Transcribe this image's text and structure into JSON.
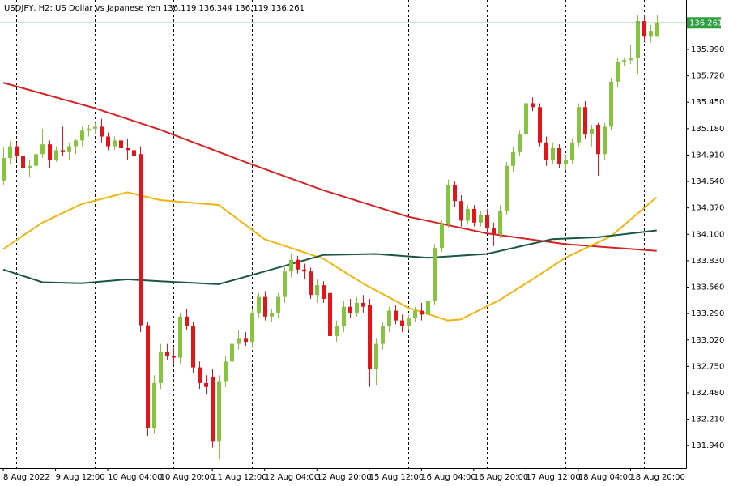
{
  "chart_data": {
    "type": "candlestick",
    "title": "USDJPY, H2:  US Dollar vs Japanese Yen  136.119 136.344 136.119 136.261",
    "x": [
      0,
      1,
      2,
      3,
      4,
      5,
      6,
      7,
      8,
      9,
      10,
      11,
      12,
      13,
      14,
      15,
      16,
      17,
      18,
      19,
      20,
      21,
      22,
      23,
      24,
      25,
      26,
      27,
      28,
      29,
      30,
      31,
      32,
      33,
      34,
      35,
      36,
      37,
      38,
      39,
      40,
      41,
      42,
      43,
      44,
      45,
      46,
      47,
      48,
      49,
      50,
      51,
      52,
      53,
      54,
      55,
      56,
      57,
      58,
      59,
      60,
      61,
      62,
      63,
      64,
      65,
      66,
      67,
      68,
      69,
      70,
      71,
      72,
      73,
      74,
      75,
      76,
      77,
      78,
      79,
      80,
      81,
      82,
      83,
      84,
      85,
      86,
      87,
      88,
      89,
      90,
      91,
      92,
      93,
      94,
      95,
      96,
      97,
      98,
      99,
      100
    ],
    "open": [
      134.65,
      134.88,
      135.0,
      134.9,
      134.78,
      134.8,
      134.92,
      135.02,
      134.86,
      134.96,
      134.94,
      135.0,
      135.06,
      135.16,
      135.18,
      135.2,
      135.1,
      135.0,
      135.06,
      134.98,
      134.96,
      134.92,
      133.17,
      132.12,
      132.58,
      132.9,
      132.86,
      132.84,
      133.26,
      133.16,
      132.74,
      132.58,
      132.64,
      131.98,
      132.6,
      132.8,
      132.98,
      133.04,
      133.0,
      133.3,
      133.46,
      133.26,
      133.3,
      133.46,
      133.72,
      133.84,
      133.74,
      133.72,
      133.48,
      133.58,
      133.5,
      133.06,
      133.16,
      133.36,
      133.3,
      133.4,
      133.38,
      132.72,
      132.98,
      133.16,
      133.32,
      133.22,
      133.16,
      133.24,
      133.32,
      133.28,
      133.42,
      133.96,
      134.2,
      134.6,
      134.44,
      134.24,
      134.36,
      134.22,
      134.3,
      134.16,
      134.1,
      134.34,
      134.8,
      134.94,
      135.12,
      135.44,
      135.4,
      135.04,
      134.86,
      134.98,
      134.82,
      134.86,
      135.04,
      135.4,
      135.12,
      135.22,
      134.92,
      135.2,
      135.66,
      135.86,
      135.88,
      135.9,
      136.28,
      136.12,
      136.119
    ],
    "high": [
      134.99,
      135.05,
      135.04,
      134.96,
      134.86,
      134.95,
      135.18,
      135.06,
      135.0,
      135.2,
      135.04,
      135.08,
      135.2,
      135.22,
      135.24,
      135.28,
      135.14,
      135.1,
      135.1,
      135.08,
      135.02,
      135.0,
      133.2,
      132.66,
      132.98,
      132.98,
      132.94,
      133.3,
      133.34,
      133.2,
      132.8,
      132.66,
      132.72,
      132.66,
      132.86,
      133.04,
      133.12,
      133.1,
      133.34,
      133.5,
      133.52,
      133.34,
      133.5,
      133.76,
      133.9,
      133.88,
      133.8,
      133.76,
      133.64,
      133.62,
      133.62,
      133.22,
      133.42,
      133.44,
      133.46,
      133.48,
      133.44,
      133.04,
      133.2,
      133.36,
      133.38,
      133.28,
      133.28,
      133.36,
      133.4,
      133.46,
      134.0,
      134.24,
      134.66,
      134.64,
      134.5,
      134.4,
      134.4,
      134.34,
      134.36,
      134.22,
      134.4,
      134.84,
      135.0,
      135.16,
      135.48,
      135.5,
      135.44,
      135.1,
      135.04,
      135.02,
      134.92,
      135.08,
      135.44,
      135.46,
      135.22,
      135.24,
      135.24,
      135.7,
      135.9,
      135.9,
      136.04,
      136.34,
      136.34,
      136.24,
      136.344
    ],
    "low": [
      134.6,
      134.82,
      134.86,
      134.7,
      134.68,
      134.76,
      134.88,
      134.78,
      134.84,
      134.9,
      134.86,
      134.92,
      135.0,
      135.1,
      135.12,
      135.04,
      134.96,
      134.96,
      134.94,
      134.86,
      134.82,
      133.1,
      132.04,
      132.06,
      132.52,
      132.82,
      132.78,
      132.78,
      133.12,
      132.68,
      132.52,
      132.46,
      131.92,
      131.8,
      132.54,
      132.76,
      132.92,
      132.96,
      132.94,
      133.24,
      133.22,
      133.2,
      133.24,
      133.4,
      133.66,
      133.7,
      133.64,
      133.44,
      133.4,
      133.4,
      132.98,
      133.0,
      133.1,
      133.24,
      133.26,
      133.3,
      132.54,
      132.56,
      132.92,
      133.1,
      133.18,
      133.1,
      133.12,
      133.2,
      133.22,
      133.24,
      133.38,
      133.92,
      134.16,
      134.38,
      134.18,
      134.2,
      134.18,
      134.18,
      134.12,
      133.98,
      134.06,
      134.3,
      134.74,
      134.9,
      135.08,
      135.36,
      135.0,
      134.8,
      134.82,
      134.78,
      134.76,
      134.82,
      135.0,
      135.08,
      135.0,
      134.7,
      134.86,
      135.16,
      135.6,
      135.82,
      135.84,
      135.74,
      136.06,
      136.06,
      136.119
    ],
    "close": [
      134.88,
      135.0,
      134.9,
      134.78,
      134.8,
      134.92,
      135.02,
      134.86,
      134.96,
      134.94,
      135.0,
      135.06,
      135.16,
      135.18,
      135.2,
      135.1,
      135.0,
      135.06,
      134.98,
      134.96,
      134.9,
      133.17,
      132.12,
      132.58,
      132.9,
      132.86,
      132.84,
      133.26,
      133.16,
      132.74,
      132.58,
      132.54,
      131.98,
      132.6,
      132.8,
      132.98,
      133.04,
      133.0,
      133.3,
      133.46,
      133.26,
      133.3,
      133.46,
      133.72,
      133.84,
      133.74,
      133.72,
      133.48,
      133.58,
      133.44,
      133.06,
      133.16,
      133.36,
      133.3,
      133.4,
      133.36,
      132.72,
      132.98,
      133.16,
      133.32,
      133.22,
      133.16,
      133.24,
      133.32,
      133.28,
      133.42,
      133.96,
      134.2,
      134.6,
      134.44,
      134.24,
      134.36,
      134.22,
      134.3,
      134.16,
      134.1,
      134.34,
      134.8,
      134.94,
      135.12,
      135.44,
      135.4,
      135.04,
      134.86,
      134.98,
      134.82,
      134.86,
      135.04,
      135.4,
      135.12,
      135.18,
      134.92,
      135.2,
      135.66,
      135.86,
      135.88,
      135.9,
      136.28,
      136.12,
      136.18,
      136.261
    ],
    "up_color": "#86c440",
    "down_color": "#e3141a",
    "moving_averages": [
      {
        "color": "#d42424",
        "x": [
          0,
          14,
          24,
          37,
          49,
          62,
          74,
          86,
          100
        ],
        "values": [
          135.65,
          135.39,
          135.17,
          134.84,
          134.55,
          134.28,
          134.11,
          134.0,
          133.93
        ]
      },
      {
        "color": "#f2b50f",
        "x": [
          0,
          6,
          12,
          19,
          24,
          33,
          40,
          49,
          55,
          62,
          68,
          70,
          76,
          81,
          86,
          93,
          100
        ],
        "values": [
          133.95,
          134.22,
          134.41,
          134.53,
          134.45,
          134.4,
          134.05,
          133.85,
          133.6,
          133.35,
          133.22,
          133.23,
          133.43,
          133.64,
          133.86,
          134.08,
          134.48
        ]
      },
      {
        "color": "#1b5640",
        "x": [
          0,
          6,
          12,
          19,
          24,
          33,
          40,
          49,
          57,
          65,
          74,
          84,
          91,
          100
        ],
        "values": [
          133.74,
          133.61,
          133.6,
          133.64,
          133.62,
          133.59,
          133.72,
          133.89,
          133.9,
          133.86,
          133.9,
          134.05,
          134.07,
          134.14
        ]
      }
    ],
    "price_line": 136.261,
    "price_line_color": "#2e9e3e",
    "xlim": [
      -0.5,
      104.5
    ],
    "ylim": [
      131.71,
      136.495
    ],
    "yticks": [
      {
        "value": 131.94,
        "label": "131.940"
      },
      {
        "value": 132.21,
        "label": "132.210"
      },
      {
        "value": 132.48,
        "label": "132.480"
      },
      {
        "value": 132.75,
        "label": "132.750"
      },
      {
        "value": 133.02,
        "label": "133.020"
      },
      {
        "value": 133.29,
        "label": "133.290"
      },
      {
        "value": 133.56,
        "label": "133.560"
      },
      {
        "value": 133.83,
        "label": "133.830"
      },
      {
        "value": 134.1,
        "label": "134.100"
      },
      {
        "value": 134.37,
        "label": "134.370"
      },
      {
        "value": 134.64,
        "label": "134.640"
      },
      {
        "value": 134.91,
        "label": "134.910"
      },
      {
        "value": 135.18,
        "label": "135.180"
      },
      {
        "value": 135.45,
        "label": "135.450"
      },
      {
        "value": 135.72,
        "label": "135.720"
      },
      {
        "value": 135.99,
        "label": "135.990"
      }
    ],
    "xticks": [
      {
        "value": 0,
        "label": "8 Aug 2022"
      },
      {
        "value": 8,
        "label": "9 Aug 12:00"
      },
      {
        "value": 16,
        "label": "10 Aug 04:00"
      },
      {
        "value": 24,
        "label": "10 Aug 20:00"
      },
      {
        "value": 32,
        "label": "11 Aug 12:00"
      },
      {
        "value": 40,
        "label": "12 Aug 04:00"
      },
      {
        "value": 48,
        "label": "12 Aug 20:00"
      },
      {
        "value": 56,
        "label": "15 Aug 12:00"
      },
      {
        "value": 64,
        "label": "16 Aug 04:00"
      },
      {
        "value": 72,
        "label": "16 Aug 20:00"
      },
      {
        "value": 80,
        "label": "17 Aug 12:00"
      },
      {
        "value": 88,
        "label": "18 Aug 04:00"
      },
      {
        "value": 96,
        "label": "18 Aug 20:00"
      }
    ],
    "xgrid": [
      2,
      14,
      26,
      38,
      50,
      62,
      74,
      86,
      98
    ]
  }
}
